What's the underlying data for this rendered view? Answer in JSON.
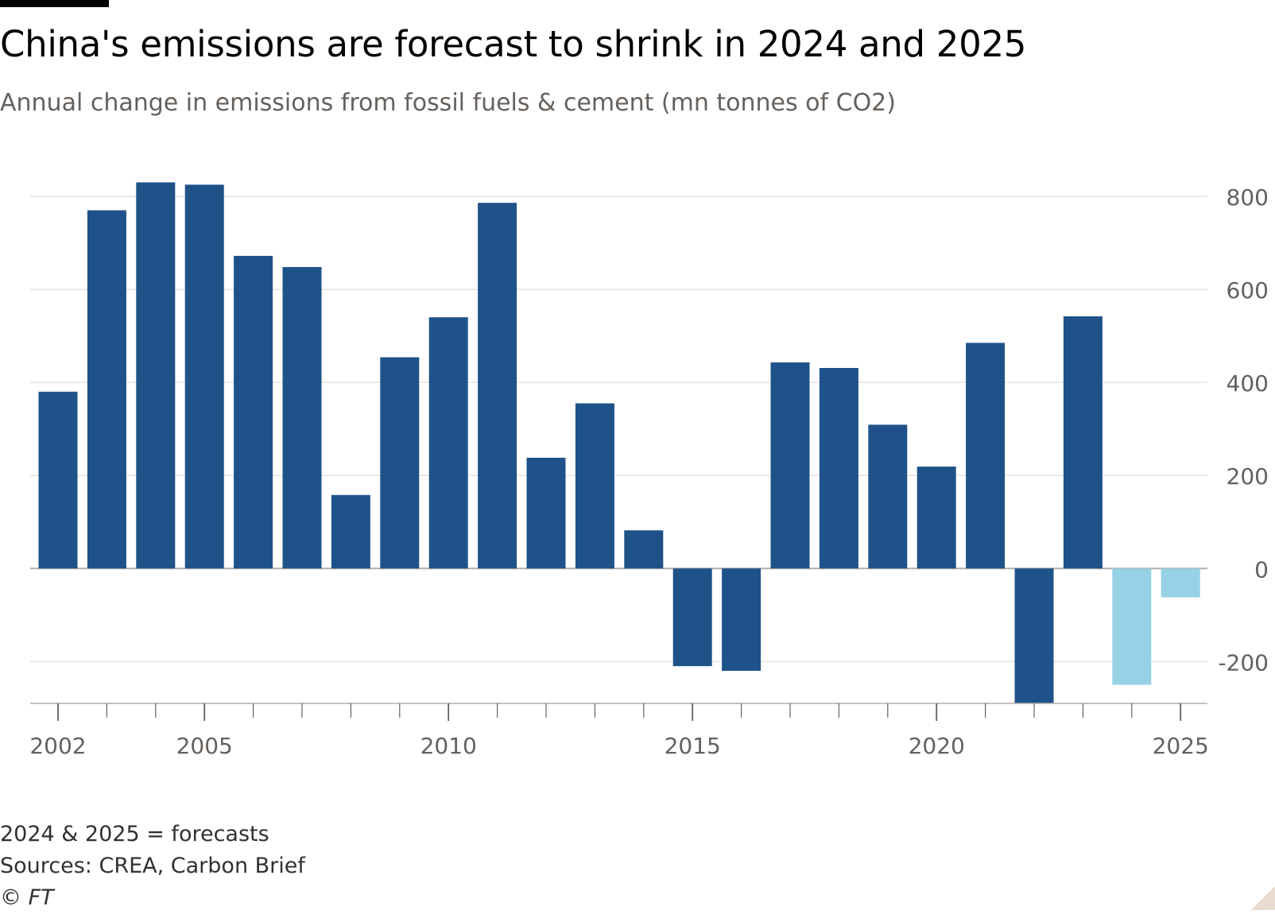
{
  "title": "China's emissions are forecast to shrink in 2024 and 2025",
  "subtitle": "Annual change in emissions from fossil fuels & cement (mn tonnes of CO2)",
  "note": "2024 & 2025 = forecasts",
  "source": "Sources: CREA, Carbon Brief",
  "copyright": "© FT",
  "colors": {
    "actual": "#1f5289",
    "forecast": "#96d1e5",
    "grid": "#e6e2dc",
    "zero_line": "#b3aea8",
    "axis_text": "#66605c",
    "tick": "#66605c",
    "corner": "#e9dbd0"
  },
  "chart_data": {
    "type": "bar",
    "categories": [
      2002,
      2003,
      2004,
      2005,
      2006,
      2007,
      2008,
      2009,
      2010,
      2011,
      2012,
      2013,
      2014,
      2015,
      2016,
      2017,
      2018,
      2019,
      2020,
      2021,
      2022,
      2023,
      2024,
      2025
    ],
    "values": [
      380,
      770,
      830,
      825,
      672,
      648,
      158,
      454,
      540,
      786,
      238,
      355,
      82,
      -210,
      -220,
      443,
      431,
      309,
      219,
      485,
      -290,
      542,
      -250,
      -62
    ],
    "forecast": [
      false,
      false,
      false,
      false,
      false,
      false,
      false,
      false,
      false,
      false,
      false,
      false,
      false,
      false,
      false,
      false,
      false,
      false,
      false,
      false,
      false,
      false,
      true,
      true
    ],
    "ylim": [
      -290,
      800
    ],
    "yticks": [
      800,
      600,
      400,
      200,
      0,
      -200
    ],
    "xtick_labels": [
      2002,
      2005,
      2010,
      2015,
      2020,
      2025
    ],
    "y_axis_position": "right",
    "grid": true,
    "xlabel": "",
    "ylabel": ""
  }
}
